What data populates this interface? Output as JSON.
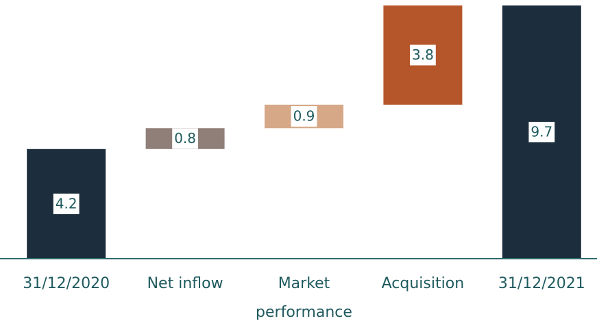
{
  "chart_data": {
    "type": "waterfall",
    "categories": [
      "31/12/2020",
      "Net inflow",
      "Market performance",
      "Acquisition",
      "31/12/2021"
    ],
    "values": [
      4.2,
      0.8,
      0.9,
      3.8,
      9.7
    ],
    "measures": [
      "absolute",
      "relative",
      "relative",
      "relative",
      "total"
    ],
    "colors": [
      "#1c2e3d",
      "#8f7f78",
      "#d6a888",
      "#b5562a",
      "#1c2e3d"
    ]
  }
}
